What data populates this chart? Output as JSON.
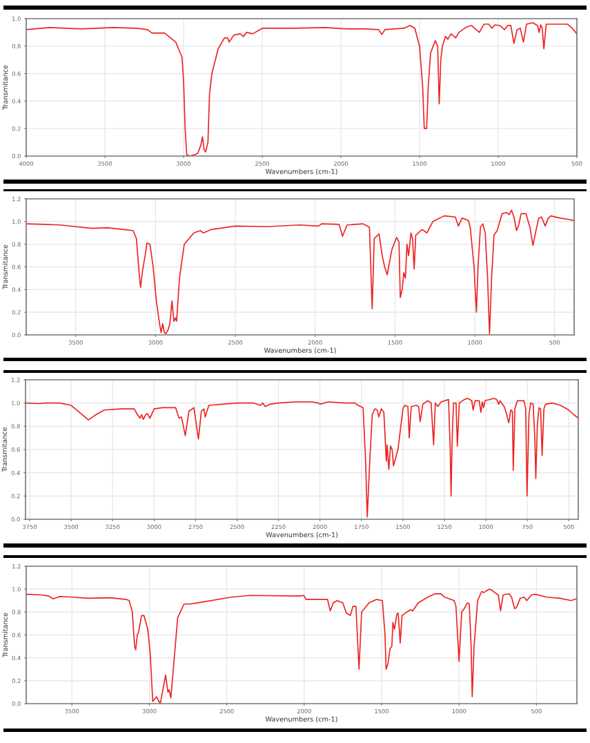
{
  "chart_data": [
    {
      "type": "line",
      "xlabel": "Wavenumbers (cm-1)",
      "ylabel": "Transmitance",
      "xlim": [
        4000,
        500
      ],
      "ylim": [
        0,
        1.0
      ],
      "xticks": [
        4000,
        3500,
        3000,
        2500,
        2000,
        1500,
        1000,
        500
      ],
      "yticks": [
        {
          "value": 0,
          "label": "0.0"
        },
        {
          "value": 0.2,
          "label": "0.2"
        },
        {
          "value": 0.4,
          "label": "0.4"
        },
        {
          "value": 0.6,
          "label": "0.6"
        },
        {
          "value": 0.8,
          "label": "0.8"
        },
        {
          "value": 1.0,
          "label": "1.0"
        }
      ],
      "grid": true,
      "series": [
        {
          "color": "#ee2222",
          "x": [
            4000,
            3850,
            3650,
            3450,
            3300,
            3230,
            3200,
            3120,
            3050,
            3010,
            3000,
            2990,
            2980,
            2960,
            2930,
            2910,
            2890,
            2880,
            2870,
            2860,
            2845,
            2835,
            2820,
            2780,
            2740,
            2720,
            2710,
            2680,
            2640,
            2620,
            2600,
            2560,
            2500,
            2300,
            2100,
            1960,
            1850,
            1760,
            1740,
            1720,
            1600,
            1560,
            1530,
            1500,
            1480,
            1470,
            1455,
            1445,
            1430,
            1400,
            1385,
            1375,
            1365,
            1355,
            1335,
            1320,
            1300,
            1270,
            1250,
            1200,
            1170,
            1140,
            1120,
            1090,
            1060,
            1040,
            1020,
            990,
            960,
            940,
            920,
            900,
            880,
            860,
            840,
            820,
            780,
            750,
            740,
            730,
            720,
            710,
            695,
            650,
            560,
            530,
            500
          ],
          "values": [
            0.92,
            0.935,
            0.925,
            0.935,
            0.93,
            0.92,
            0.895,
            0.895,
            0.83,
            0.72,
            0.55,
            0.2,
            0.01,
            0.0,
            0.01,
            0.02,
            0.08,
            0.14,
            0.05,
            0.03,
            0.1,
            0.45,
            0.6,
            0.78,
            0.86,
            0.86,
            0.83,
            0.88,
            0.89,
            0.87,
            0.9,
            0.89,
            0.93,
            0.93,
            0.935,
            0.925,
            0.925,
            0.92,
            0.885,
            0.92,
            0.93,
            0.95,
            0.93,
            0.8,
            0.5,
            0.2,
            0.2,
            0.5,
            0.75,
            0.84,
            0.8,
            0.38,
            0.7,
            0.8,
            0.87,
            0.85,
            0.89,
            0.86,
            0.9,
            0.94,
            0.95,
            0.92,
            0.9,
            0.96,
            0.96,
            0.93,
            0.955,
            0.95,
            0.92,
            0.95,
            0.95,
            0.82,
            0.92,
            0.93,
            0.83,
            0.96,
            0.97,
            0.95,
            0.9,
            0.955,
            0.93,
            0.78,
            0.96,
            0.96,
            0.96,
            0.93,
            0.89
          ]
        }
      ]
    },
    {
      "type": "line",
      "xlabel": "Wavenumbers (cm-1)",
      "ylabel": "Transmitance",
      "xlim": [
        3810,
        378
      ],
      "ylim": [
        0,
        1.2
      ],
      "xticks": [
        3500,
        3000,
        2500,
        2000,
        1500,
        1000,
        500
      ],
      "yticks": [
        {
          "value": 0,
          "label": "0.0"
        },
        {
          "value": 0.2,
          "label": "0.2"
        },
        {
          "value": 0.4,
          "label": "0.4"
        },
        {
          "value": 0.6,
          "label": "0.6"
        },
        {
          "value": 0.8,
          "label": "0.8"
        },
        {
          "value": 1.0,
          "label": "1.0"
        },
        {
          "value": 1.2,
          "label": "1.2"
        }
      ],
      "grid": true,
      "series": [
        {
          "color": "#ee2222",
          "x": [
            3810,
            3700,
            3600,
            3400,
            3300,
            3200,
            3140,
            3120,
            3100,
            3094,
            3080,
            3065,
            3054,
            3035,
            3015,
            3005,
            2995,
            2975,
            2965,
            2955,
            2945,
            2935,
            2920,
            2910,
            2897,
            2885,
            2875,
            2868,
            2850,
            2820,
            2760,
            2720,
            2700,
            2650,
            2500,
            2300,
            2100,
            1980,
            1960,
            1850,
            1829,
            1800,
            1700,
            1660,
            1643,
            1630,
            1600,
            1580,
            1565,
            1549,
            1520,
            1490,
            1475,
            1467,
            1455,
            1445,
            1435,
            1425,
            1415,
            1400,
            1390,
            1380,
            1370,
            1330,
            1300,
            1263,
            1192,
            1122,
            1103,
            1080,
            1040,
            1028,
            1005,
            990,
            980,
            965,
            950,
            935,
            920,
            908,
            895,
            880,
            860,
            829,
            800,
            785,
            770,
            755,
            739,
            725,
            710,
            680,
            655,
            636,
            620,
            600,
            582,
            559,
            540,
            524,
            465,
            420,
            383
          ],
          "values": [
            0.98,
            0.975,
            0.97,
            0.94,
            0.945,
            0.93,
            0.92,
            0.85,
            0.5,
            0.42,
            0.58,
            0.7,
            0.81,
            0.8,
            0.6,
            0.45,
            0.3,
            0.1,
            0.02,
            0.1,
            0.02,
            0.01,
            0.05,
            0.1,
            0.3,
            0.12,
            0.15,
            0.12,
            0.5,
            0.8,
            0.9,
            0.92,
            0.9,
            0.93,
            0.96,
            0.955,
            0.97,
            0.96,
            0.98,
            0.975,
            0.87,
            0.97,
            0.98,
            0.95,
            0.23,
            0.85,
            0.89,
            0.7,
            0.6,
            0.53,
            0.75,
            0.86,
            0.82,
            0.33,
            0.4,
            0.55,
            0.5,
            0.8,
            0.7,
            0.9,
            0.85,
            0.58,
            0.88,
            0.93,
            0.9,
            1.0,
            1.05,
            1.04,
            0.96,
            1.03,
            1.01,
            0.94,
            0.6,
            0.2,
            0.6,
            0.95,
            0.98,
            0.9,
            0.5,
            0.01,
            0.5,
            0.88,
            0.92,
            1.07,
            1.08,
            1.06,
            1.1,
            1.04,
            0.92,
            0.97,
            1.07,
            1.07,
            0.95,
            0.79,
            0.9,
            1.03,
            1.04,
            0.96,
            1.03,
            1.05,
            1.03,
            1.02,
            1.01
          ]
        }
      ]
    },
    {
      "type": "line",
      "xlabel": "Wavenumbers (cm-1)",
      "ylabel": "Transmitance",
      "xlim": [
        3775,
        443
      ],
      "ylim": [
        0,
        1.2
      ],
      "xticks": [
        3750,
        3500,
        3250,
        3000,
        2750,
        2500,
        2250,
        2000,
        1750,
        1500,
        1250,
        1000,
        750,
        500
      ],
      "yticks": [
        {
          "value": 0,
          "label": "0.0"
        },
        {
          "value": 0.2,
          "label": "0.2"
        },
        {
          "value": 0.4,
          "label": "0.4"
        },
        {
          "value": 0.6,
          "label": "0.6"
        },
        {
          "value": 0.8,
          "label": "0.8"
        },
        {
          "value": 1.0,
          "label": "1.0"
        },
        {
          "value": 1.2,
          "label": "1.2"
        }
      ],
      "grid": true,
      "series": [
        {
          "color": "#ee2222",
          "x": [
            3775,
            3700,
            3650,
            3570,
            3500,
            3450,
            3396,
            3350,
            3300,
            3200,
            3120,
            3100,
            3085,
            3075,
            3065,
            3050,
            3040,
            3025,
            3000,
            2950,
            2870,
            2850,
            2835,
            2812,
            2790,
            2760,
            2733,
            2715,
            2700,
            2692,
            2670,
            2500,
            2400,
            2360,
            2345,
            2330,
            2300,
            2250,
            2150,
            2050,
            2010,
            2000,
            1950,
            1850,
            1790,
            1770,
            1740,
            1725,
            1715,
            1700,
            1685,
            1670,
            1655,
            1645,
            1630,
            1615,
            1600,
            1595,
            1585,
            1575,
            1565,
            1557,
            1530,
            1500,
            1490,
            1470,
            1462,
            1450,
            1420,
            1405,
            1396,
            1380,
            1350,
            1330,
            1315,
            1305,
            1290,
            1270,
            1225,
            1215,
            1210,
            1203,
            1195,
            1180,
            1172,
            1160,
            1130,
            1110,
            1085,
            1077,
            1065,
            1040,
            1030,
            1022,
            1014,
            1005,
            950,
            935,
            923,
            915,
            890,
            880,
            862,
            850,
            840,
            835,
            825,
            810,
            770,
            760,
            752,
            740,
            730,
            715,
            705,
            699,
            690,
            680,
            670,
            661,
            650,
            640,
            600,
            550,
            500,
            470,
            443
          ],
          "values": [
            1.0,
            0.995,
            1.0,
            1.0,
            0.98,
            0.92,
            0.855,
            0.9,
            0.94,
            0.95,
            0.95,
            0.9,
            0.87,
            0.9,
            0.86,
            0.9,
            0.91,
            0.87,
            0.95,
            0.96,
            0.96,
            0.87,
            0.88,
            0.72,
            0.93,
            0.96,
            0.69,
            0.93,
            0.95,
            0.88,
            0.98,
            1.0,
            1.0,
            0.98,
            1.0,
            0.97,
            0.99,
            1.0,
            1.01,
            1.01,
            1.0,
            0.99,
            1.01,
            1.0,
            1.0,
            0.98,
            0.96,
            0.5,
            0.02,
            0.5,
            0.9,
            0.95,
            0.94,
            0.88,
            0.95,
            0.92,
            0.5,
            0.64,
            0.43,
            0.63,
            0.6,
            0.46,
            0.6,
            0.95,
            0.98,
            0.97,
            0.7,
            0.97,
            0.98,
            0.97,
            0.84,
            0.99,
            1.02,
            1.0,
            0.64,
            1.0,
            0.97,
            1.01,
            1.03,
            0.6,
            0.2,
            0.7,
            1.0,
            1.0,
            0.63,
            1.0,
            1.03,
            1.04,
            1.02,
            0.94,
            1.02,
            1.02,
            0.92,
            1.01,
            0.96,
            1.02,
            1.04,
            1.03,
            0.99,
            1.02,
            0.97,
            0.93,
            0.83,
            0.94,
            0.93,
            0.42,
            0.95,
            1.02,
            1.02,
            0.95,
            0.2,
            0.9,
            1.0,
            0.99,
            0.7,
            0.35,
            0.8,
            0.96,
            0.95,
            0.55,
            0.95,
            0.99,
            1.0,
            0.98,
            0.94,
            0.9,
            0.87
          ]
        }
      ]
    },
    {
      "type": "line",
      "xlabel": "Wavenumbers (cm-1)",
      "ylabel": "Transmitance",
      "xlim": [
        3795,
        239
      ],
      "ylim": [
        0,
        1.2
      ],
      "xticks": [
        3500,
        3000,
        2500,
        2000,
        1500,
        1000,
        500
      ],
      "yticks": [
        {
          "value": 0,
          "label": "0.0"
        },
        {
          "value": 0.2,
          "label": "0.2"
        },
        {
          "value": 0.4,
          "label": "0.4"
        },
        {
          "value": 0.6,
          "label": "0.6"
        },
        {
          "value": 0.8,
          "label": "0.8"
        },
        {
          "value": 1.0,
          "label": "1.0"
        },
        {
          "value": 1.2,
          "label": "1.2"
        }
      ],
      "grid": true,
      "series": [
        {
          "color": "#ee2222",
          "x": [
            3795,
            3700,
            3650,
            3622,
            3580,
            3500,
            3400,
            3250,
            3150,
            3130,
            3110,
            3095,
            3088,
            3078,
            3070,
            3050,
            3035,
            3010,
            2995,
            2978,
            2954,
            2929,
            2895,
            2880,
            2872,
            2861,
            2817,
            2776,
            2739,
            2690,
            2471,
            2349,
            2032,
            2002,
            1988,
            1849,
            1832,
            1812,
            1788,
            1751,
            1727,
            1702,
            1685,
            1666,
            1646,
            1629,
            1581,
            1532,
            1495,
            1478,
            1471,
            1459,
            1446,
            1434,
            1427,
            1417,
            1402,
            1393,
            1380,
            1368,
            1337,
            1312,
            1300,
            1263,
            1202,
            1154,
            1117,
            1093,
            1032,
            1020,
            1000,
            983,
            971,
            946,
            934,
            922,
            915,
            903,
            880,
            854,
            841,
            805,
            788,
            759,
            746,
            732,
            715,
            678,
            661,
            641,
            629,
            605,
            580,
            563,
            532,
            507,
            434,
            349,
            276,
            243
          ],
          "values": [
            0.955,
            0.95,
            0.94,
            0.915,
            0.935,
            0.93,
            0.92,
            0.925,
            0.91,
            0.9,
            0.8,
            0.5,
            0.47,
            0.6,
            0.62,
            0.77,
            0.77,
            0.65,
            0.45,
            0.02,
            0.06,
            0.0,
            0.25,
            0.1,
            0.12,
            0.05,
            0.75,
            0.87,
            0.87,
            0.88,
            0.93,
            0.945,
            0.94,
            0.945,
            0.91,
            0.91,
            0.81,
            0.88,
            0.9,
            0.88,
            0.79,
            0.77,
            0.85,
            0.85,
            0.3,
            0.8,
            0.88,
            0.91,
            0.9,
            0.6,
            0.3,
            0.35,
            0.48,
            0.5,
            0.71,
            0.65,
            0.78,
            0.79,
            0.53,
            0.77,
            0.8,
            0.82,
            0.81,
            0.88,
            0.93,
            0.96,
            0.96,
            0.93,
            0.9,
            0.85,
            0.37,
            0.8,
            0.82,
            0.88,
            0.87,
            0.5,
            0.06,
            0.5,
            0.9,
            0.98,
            0.97,
            1.0,
            0.99,
            0.96,
            0.95,
            0.81,
            0.95,
            0.96,
            0.93,
            0.83,
            0.84,
            0.92,
            0.93,
            0.9,
            0.95,
            0.955,
            0.93,
            0.92,
            0.9,
            0.915
          ]
        }
      ]
    }
  ]
}
